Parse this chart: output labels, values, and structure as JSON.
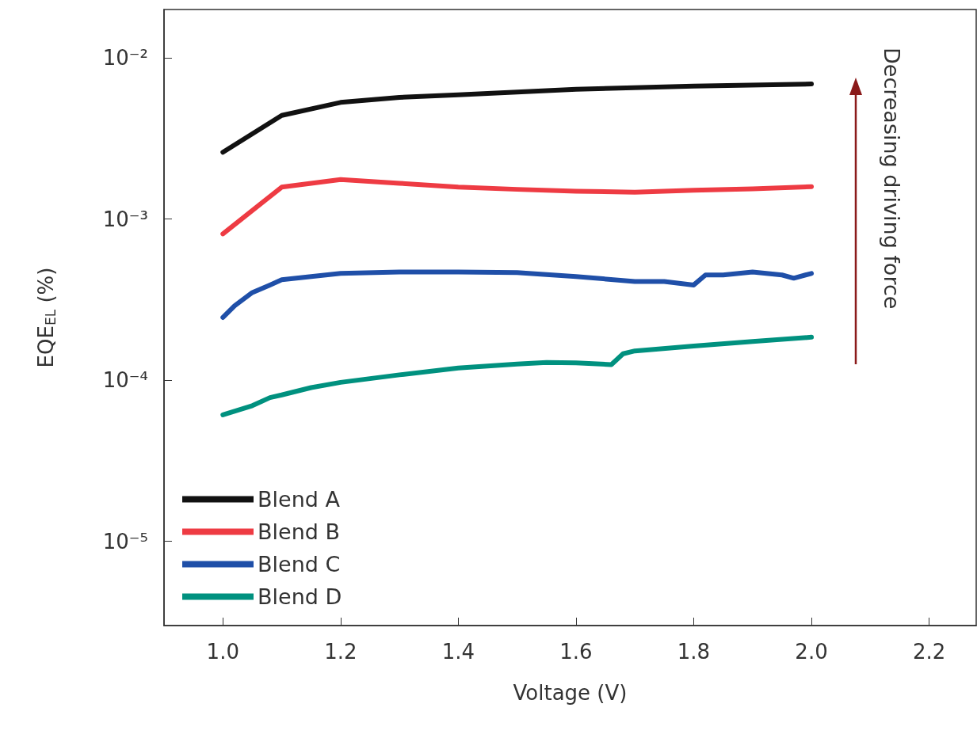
{
  "chart_data": {
    "type": "line",
    "xlabel": "Voltage (V)",
    "ylabel": "EQE$_{EL}$ (%)",
    "log": "y",
    "grid": false,
    "legend": "bottom left",
    "marker": "none",
    "line_style": "solid",
    "xlim": [
      0.9,
      2.28
    ],
    "xticks": [
      {
        "value": 1.0,
        "label": "1.0"
      },
      {
        "value": 1.2,
        "label": "1.2"
      },
      {
        "value": 1.4,
        "label": "1.4"
      },
      {
        "value": 1.6,
        "label": "1.6"
      },
      {
        "value": 1.8,
        "label": "1.8"
      },
      {
        "value": 2.0,
        "label": "2.0"
      },
      {
        "value": 2.2,
        "label": "2.2"
      }
    ],
    "ylim": [
      3e-06,
      0.02
    ],
    "yticks": [
      {
        "value": 1e-05,
        "label": "10⁻⁵"
      },
      {
        "value": 0.0001,
        "label": "10⁻⁴"
      },
      {
        "value": 0.001,
        "label": "10⁻³"
      },
      {
        "value": 0.01,
        "label": "10⁻²"
      }
    ],
    "annotations": [
      "Decreasing driving force"
    ],
    "series": [
      {
        "name": "Blend A",
        "color": "#111111",
        "x": [
          1.0,
          1.1,
          1.2,
          1.3,
          1.4,
          1.6,
          1.8,
          2.0
        ],
        "values": [
          0.0026,
          0.0044,
          0.0053,
          0.0057,
          0.0059,
          0.0064,
          0.0067,
          0.0069
        ]
      },
      {
        "name": "Blend B",
        "color": "#ee3b43",
        "x": [
          1.0,
          1.1,
          1.2,
          1.3,
          1.4,
          1.5,
          1.6,
          1.7,
          1.8,
          1.9,
          2.0
        ],
        "values": [
          0.00081,
          0.00158,
          0.00176,
          0.00167,
          0.00158,
          0.00153,
          0.00149,
          0.00147,
          0.00151,
          0.00154,
          0.00159
        ]
      },
      {
        "name": "Blend C",
        "color": "#1f4fa8",
        "x": [
          1.0,
          1.02,
          1.05,
          1.08,
          1.1,
          1.15,
          1.2,
          1.3,
          1.4,
          1.5,
          1.6,
          1.7,
          1.75,
          1.8,
          1.82,
          1.85,
          1.9,
          1.95,
          1.97,
          1.99,
          2.0
        ],
        "values": [
          0.000245,
          0.00029,
          0.00035,
          0.00039,
          0.00042,
          0.00044,
          0.00046,
          0.00047,
          0.00047,
          0.000465,
          0.00044,
          0.00041,
          0.00041,
          0.00039,
          0.00045,
          0.00045,
          0.00047,
          0.00045,
          0.00043,
          0.00045,
          0.00046
        ]
      },
      {
        "name": "Blend D",
        "color": "#00917f",
        "x": [
          1.0,
          1.05,
          1.08,
          1.1,
          1.15,
          1.2,
          1.3,
          1.4,
          1.5,
          1.55,
          1.6,
          1.66,
          1.68,
          1.7,
          1.8,
          1.9,
          2.0
        ],
        "values": [
          6.1e-05,
          6.95e-05,
          7.8e-05,
          8.1e-05,
          9e-05,
          9.7e-05,
          0.000108,
          0.000119,
          0.000126,
          0.000129,
          0.000128,
          0.000125,
          0.000146,
          0.000152,
          0.000163,
          0.000174,
          0.000185
        ]
      }
    ]
  }
}
